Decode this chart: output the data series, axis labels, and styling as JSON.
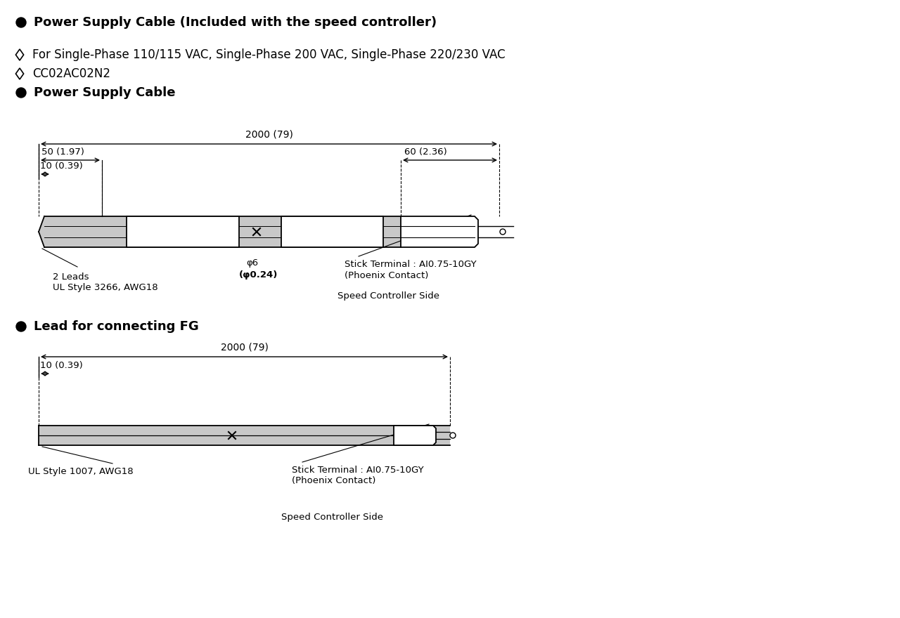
{
  "bg_color": "#ffffff",
  "title1": "Power Supply Cable (Included with the speed controller)",
  "subtitle1": "For Single-Phase 110/115 VAC, Single-Phase 200 VAC, Single-Phase 220/230 VAC",
  "subtitle2": "CC02AC02N2",
  "section1": "Power Supply Cable",
  "section2": "Lead for connecting FG",
  "cable1": {
    "total_length_label": "2000 (79)",
    "dim1_label": "50 (1.97)",
    "dim2_label": "10 (0.39)",
    "dim3_label": "60 (2.36)",
    "lead_label": "2 Leads",
    "wire_label": "UL Style 3266, AWG18",
    "terminal_label": "Stick Terminal : AI0.75-10GY",
    "terminal_label2": "(Phoenix Contact)",
    "diameter_label": "φ6",
    "diameter_label2": "(φ0.24)",
    "side_label": "Speed Controller Side"
  },
  "cable2": {
    "total_length_label": "2000 (79)",
    "dim1_label": "10 (0.39)",
    "wire_label": "UL Style 1007, AWG18",
    "terminal_label": "Stick Terminal : AI0.75-10GY",
    "terminal_label2": "(Phoenix Contact)",
    "side_label": "Speed Controller Side"
  }
}
